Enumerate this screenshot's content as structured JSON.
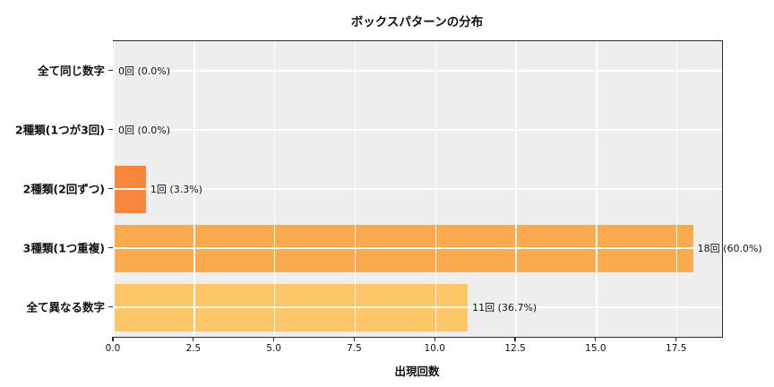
{
  "title": "ボックスパターンの分布",
  "chart_data": {
    "type": "bar",
    "orientation": "horizontal",
    "title": "ボックスパターンの分布",
    "xlabel": "出現回数",
    "ylabel": "",
    "categories": [
      "全て同じ数字",
      "2種類(1つが3回)",
      "2種類(2回ずつ)",
      "3種類(1つ重複)",
      "全て異なる数字"
    ],
    "values": [
      0,
      0,
      1,
      18,
      11
    ],
    "percentages": [
      0.0,
      0.0,
      3.3,
      60.0,
      36.7
    ],
    "bar_labels": [
      "0回 (0.0%)",
      "0回 (0.0%)",
      "1回 (3.3%)",
      "18回 (60.0%)",
      "11回 (36.7%)"
    ],
    "bar_colors": [
      "#f8873d",
      "#f8873d",
      "#f8873d",
      "#fbaa4e",
      "#fdc768"
    ],
    "xlim": [
      0,
      18.9
    ],
    "xticks": [
      0.0,
      2.5,
      5.0,
      7.5,
      10.0,
      12.5,
      15.0,
      17.5
    ],
    "xtick_labels": [
      "0.0",
      "2.5",
      "5.0",
      "7.5",
      "10.0",
      "12.5",
      "15.0",
      "17.5"
    ],
    "grid": true,
    "grid_color": "#ffffff",
    "plot_bg_color": "#eeeeee",
    "figure_bg_color": "#ffffff"
  }
}
